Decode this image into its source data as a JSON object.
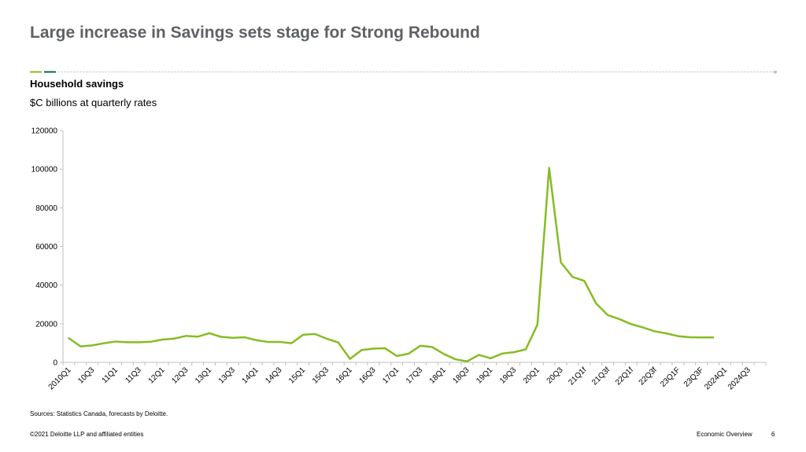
{
  "header": {
    "title": "Large increase in Savings sets stage for Strong Rebound"
  },
  "colors": {
    "title": "#5f6265",
    "accent_green": "#86bc25",
    "accent_dark_green": "#046a38",
    "line": "#86bc25",
    "axis": "#bfbfbf"
  },
  "chart_data": {
    "type": "line",
    "title": "Household savings",
    "subtitle": "$C billions at quarterly rates",
    "xlabel": "",
    "ylabel": "",
    "ylim": [
      0,
      120000
    ],
    "yticks": [
      0,
      20000,
      40000,
      60000,
      80000,
      100000,
      120000
    ],
    "grid": false,
    "legend": "none",
    "categories": [
      "2010Q1",
      "10Q2",
      "10Q3",
      "10Q4",
      "11Q1",
      "11Q2",
      "11Q3",
      "11Q4",
      "12Q1",
      "12Q2",
      "12Q3",
      "12Q4",
      "13Q1",
      "13Q2",
      "13Q3",
      "13Q4",
      "14Q1",
      "14Q2",
      "14Q3",
      "14Q4",
      "15Q1",
      "15Q2",
      "15Q3",
      "15Q4",
      "16Q1",
      "16Q2",
      "16Q3",
      "16Q4",
      "17Q1",
      "17Q2",
      "17Q3",
      "17Q4",
      "18Q1",
      "18Q2",
      "18Q3",
      "18Q4",
      "19Q1",
      "19Q2",
      "19Q3",
      "19Q4",
      "20Q1",
      "20Q2",
      "20Q3",
      "20Q4",
      "21Q1f",
      "21Q2f",
      "21Q3f",
      "21Q4f",
      "22Q1f",
      "22Q2f",
      "22Q3f",
      "22Q4f",
      "23Q1F",
      "23Q2F",
      "23Q3F",
      "23Q4F",
      "2024Q1",
      "2024Q2",
      "2024Q3",
      "2024Q4"
    ],
    "tick_labels": [
      "2010Q1",
      "10Q3",
      "11Q1",
      "11Q3",
      "12Q1",
      "12Q3",
      "13Q1",
      "13Q3",
      "14Q1",
      "14Q3",
      "15Q1",
      "15Q3",
      "16Q1",
      "16Q3",
      "17Q1",
      "17Q3",
      "18Q1",
      "18Q3",
      "19Q1",
      "19Q3",
      "20Q1",
      "20Q3",
      "21Q1f",
      "21Q3f",
      "22Q1f",
      "22Q3f",
      "23Q1F",
      "23Q3F",
      "2024Q1",
      "2024Q3"
    ],
    "series": [
      {
        "values": [
          12500,
          8300,
          8800,
          9900,
          10800,
          10400,
          10400,
          10700,
          11800,
          12300,
          13700,
          13300,
          15100,
          13200,
          12700,
          13000,
          11500,
          10600,
          10600,
          9900,
          14300,
          14700,
          12300,
          10300,
          1800,
          6400,
          7100,
          7300,
          3300,
          4500,
          8600,
          8000,
          4400,
          1600,
          500,
          3900,
          2100,
          4600,
          5300,
          6700,
          19500,
          100700,
          51700,
          44200,
          42200,
          30600,
          24500,
          22400,
          19800,
          18100,
          16100,
          15000,
          13600,
          13000,
          12900,
          12900,
          null,
          null,
          null,
          null
        ]
      }
    ]
  },
  "footer": {
    "sources": "Sources: Statistics Canada, forecasts by Deloitte.",
    "copyright": "©2021 Deloitte LLP and affiliated entities",
    "section": "Economic Overview",
    "page_number": "6"
  }
}
